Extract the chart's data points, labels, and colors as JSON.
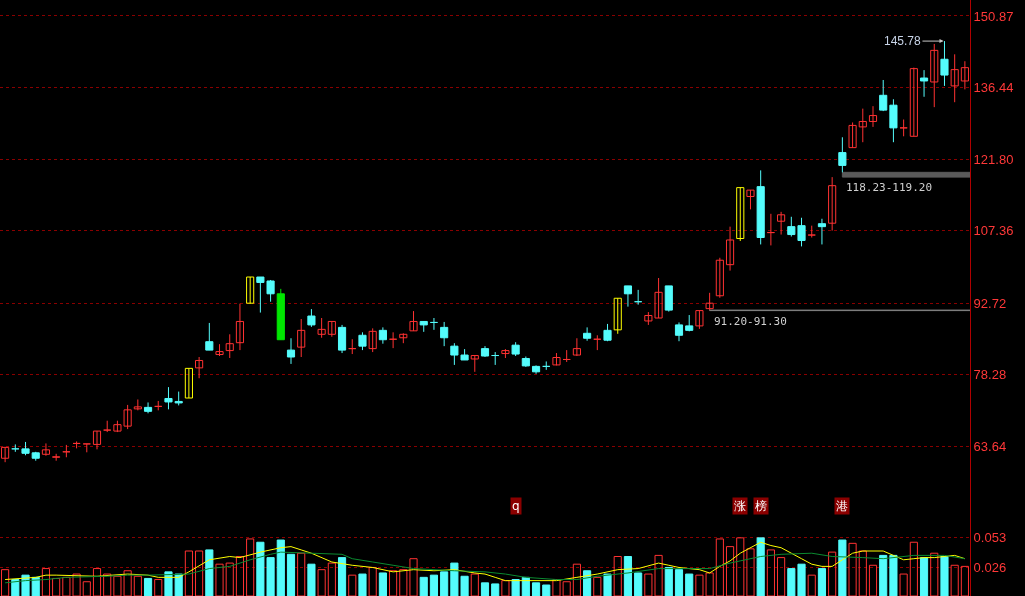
{
  "chart_data": [
    {
      "type": "candlestick",
      "categories": [
        null,
        null,
        null,
        null,
        null,
        null,
        null,
        null,
        null,
        null,
        null,
        null,
        null,
        null,
        null,
        null,
        null,
        null,
        null,
        null,
        null,
        null,
        null,
        null,
        null,
        null,
        null,
        null,
        null,
        null,
        null,
        null,
        null,
        null,
        null,
        null,
        null,
        null,
        null,
        null,
        null,
        null,
        null,
        null,
        null,
        null,
        null,
        null,
        null,
        null,
        null,
        null,
        null,
        null,
        null,
        null,
        null,
        null,
        null,
        null,
        null,
        null,
        null,
        null,
        null,
        null,
        null,
        null,
        null,
        null,
        null,
        null,
        null,
        null,
        null,
        null,
        null,
        null,
        null,
        null,
        null,
        null,
        null,
        null,
        null,
        null,
        null,
        null,
        null,
        null,
        null,
        null,
        null,
        null,
        null
      ],
      "ohlc": [
        [
          61.3,
          63.5,
          60.5,
          63.5
        ],
        [
          63.2,
          64.1,
          62.6,
          63.2
        ],
        [
          63.2,
          64.6,
          61.9,
          62.3
        ],
        [
          62.4,
          62.6,
          60.8,
          61.3
        ],
        [
          62.1,
          64.3,
          61.8,
          63.0
        ],
        [
          61.5,
          62.2,
          60.8,
          61.6
        ],
        [
          62.6,
          64.0,
          61.5,
          62.6
        ],
        [
          64.3,
          64.7,
          63.3,
          64.3
        ],
        [
          64.2,
          64.2,
          62.5,
          64.2
        ],
        [
          64.1,
          66.8,
          63.1,
          66.8
        ],
        [
          67.0,
          68.9,
          66.6,
          67.0
        ],
        [
          66.8,
          68.9,
          66.6,
          68.1
        ],
        [
          67.8,
          72.1,
          67.2,
          71.1
        ],
        [
          71.3,
          73.2,
          71.0,
          71.7
        ],
        [
          71.6,
          72.6,
          70.4,
          70.8
        ],
        [
          71.8,
          72.9,
          71.0,
          71.8
        ],
        [
          73.4,
          75.7,
          71.2,
          72.7
        ],
        [
          72.8,
          74.8,
          72.0,
          72.5
        ],
        [
          73.5,
          79.5,
          73.5,
          79.5
        ],
        [
          79.6,
          81.8,
          77.5,
          81.1
        ],
        [
          84.9,
          88.7,
          83.2,
          83.2
        ],
        [
          82.3,
          84.4,
          82.0,
          82.9
        ],
        [
          83.1,
          86.4,
          81.6,
          84.5
        ],
        [
          84.7,
          92.6,
          83.2,
          89.0
        ],
        [
          92.7,
          98.0,
          92.6,
          98.0
        ],
        [
          98.0,
          98.0,
          90.8,
          96.9
        ],
        [
          97.2,
          97.4,
          93.0,
          94.6
        ],
        [
          94.6,
          95.6,
          85.3,
          85.3
        ],
        [
          83.2,
          85.6,
          80.4,
          81.8
        ],
        [
          83.8,
          89.5,
          81.8,
          87.2
        ],
        [
          90.1,
          91.5,
          87.9,
          88.3
        ],
        [
          86.4,
          89.7,
          85.7,
          87.4
        ],
        [
          86.4,
          89.0,
          85.9,
          89.0
        ],
        [
          87.8,
          88.3,
          82.6,
          83.2
        ],
        [
          83.5,
          85.4,
          82.4,
          83.5
        ],
        [
          86.2,
          86.8,
          83.2,
          84.0
        ],
        [
          83.5,
          87.6,
          82.8,
          87.0
        ],
        [
          87.2,
          87.8,
          84.5,
          85.3
        ],
        [
          85.4,
          86.8,
          83.6,
          85.4
        ],
        [
          85.7,
          86.6,
          84.6,
          86.4
        ],
        [
          87.1,
          91.1,
          87.1,
          89.0
        ],
        [
          89.0,
          89.0,
          86.9,
          88.3
        ],
        [
          88.8,
          89.7,
          87.3,
          88.8
        ],
        [
          87.8,
          88.9,
          84.0,
          85.7
        ],
        [
          84.0,
          84.6,
          80.2,
          82.2
        ],
        [
          82.2,
          83.4,
          81.2,
          81.2
        ],
        [
          81.4,
          82.1,
          78.8,
          82.1
        ],
        [
          83.5,
          84.0,
          81.8,
          82.0
        ],
        [
          82.1,
          82.8,
          80.2,
          82.1
        ],
        [
          82.5,
          83.4,
          81.6,
          83.1
        ],
        [
          84.2,
          84.8,
          82.0,
          82.4
        ],
        [
          81.5,
          81.9,
          79.8,
          80.0
        ],
        [
          79.9,
          80.1,
          78.4,
          78.8
        ],
        [
          79.9,
          80.9,
          79.2,
          79.9
        ],
        [
          80.2,
          82.6,
          80.1,
          81.7
        ],
        [
          81.3,
          83.2,
          80.8,
          81.3
        ],
        [
          82.2,
          85.6,
          82.0,
          83.5
        ],
        [
          86.6,
          87.8,
          85.1,
          85.6
        ],
        [
          85.4,
          86.2,
          83.2,
          85.4
        ],
        [
          87.2,
          88.5,
          85.0,
          85.2
        ],
        [
          87.3,
          93.7,
          86.5,
          93.7
        ],
        [
          96.2,
          96.2,
          92.0,
          94.6
        ],
        [
          93.0,
          95.4,
          92.4,
          93.0
        ],
        [
          89.1,
          90.9,
          88.3,
          90.2
        ],
        [
          89.7,
          97.8,
          89.7,
          94.9
        ],
        [
          96.2,
          96.2,
          91.0,
          91.3
        ],
        [
          88.3,
          88.8,
          85.0,
          86.2
        ],
        [
          88.1,
          90.3,
          87.0,
          87.2
        ],
        [
          88.1,
          91.2,
          87.5,
          91.2
        ],
        [
          91.6,
          94.8,
          91.3,
          92.7
        ],
        [
          94.2,
          101.9,
          93.8,
          101.4
        ],
        [
          100.5,
          108.2,
          99.3,
          105.5
        ],
        [
          105.8,
          116.1,
          105.3,
          116.1
        ],
        [
          114.3,
          115.6,
          111.7,
          115.6
        ],
        [
          116.3,
          119.6,
          104.6,
          106.0
        ],
        [
          107.0,
          110.8,
          104.4,
          107.0
        ],
        [
          109.3,
          111.2,
          106.6,
          110.6
        ],
        [
          108.2,
          110.2,
          106.2,
          106.6
        ],
        [
          108.4,
          110.0,
          104.2,
          105.4
        ],
        [
          106.5,
          108.4,
          106.0,
          106.5
        ],
        [
          108.8,
          109.8,
          104.6,
          108.2
        ],
        [
          108.9,
          118.23,
          107.4,
          116.5
        ],
        [
          123.2,
          126.3,
          119.2,
          120.6
        ],
        [
          124.2,
          129.3,
          124.2,
          128.7
        ],
        [
          128.4,
          132.1,
          125.3,
          129.5
        ],
        [
          129.5,
          132.6,
          128.4,
          130.7
        ],
        [
          134.8,
          137.9,
          131.6,
          131.8
        ],
        [
          132.8,
          134.0,
          125.3,
          128.2
        ],
        [
          128.2,
          129.9,
          126.5,
          128.2
        ],
        [
          126.5,
          140.4,
          126.5,
          140.2
        ],
        [
          138.3,
          139.9,
          134.5,
          137.7
        ],
        [
          137.5,
          145.2,
          132.4,
          143.9
        ],
        [
          142.1,
          145.78,
          136.7,
          138.9
        ],
        [
          136.7,
          143.1,
          133.4,
          140.0
        ],
        [
          137.7,
          141.7,
          136.0,
          140.4
        ]
      ],
      "colors": [
        "#ff3232",
        "#54fcfc",
        "#54fcfc",
        "#54fcfc",
        "#ff3232",
        "#ff3232",
        "#ff3232",
        "#ff3232",
        "#ff3232",
        "#ff3232",
        "#ff3232",
        "#ff3232",
        "#ff3232",
        "#ff3232",
        "#54fcfc",
        "#ff3232",
        "#54fcfc",
        "#54fcfc",
        "#ffff00",
        "#ff3232",
        "#54fcfc",
        "#ff3232",
        "#ff3232",
        "#ff3232",
        "#ffff00",
        "#54fcfc",
        "#54fcfc",
        "#00e600",
        "#54fcfc",
        "#ff3232",
        "#54fcfc",
        "#ff3232",
        "#ff3232",
        "#54fcfc",
        "#ff3232",
        "#54fcfc",
        "#ff3232",
        "#54fcfc",
        "#ff3232",
        "#ff3232",
        "#ff3232",
        "#54fcfc",
        "#54fcfc",
        "#54fcfc",
        "#54fcfc",
        "#54fcfc",
        "#ff3232",
        "#54fcfc",
        "#54fcfc",
        "#ff3232",
        "#54fcfc",
        "#54fcfc",
        "#54fcfc",
        "#54fcfc",
        "#ff3232",
        "#ff3232",
        "#ff3232",
        "#54fcfc",
        "#ff3232",
        "#54fcfc",
        "#ffff00",
        "#54fcfc",
        "#54fcfc",
        "#ff3232",
        "#ff3232",
        "#54fcfc",
        "#54fcfc",
        "#54fcfc",
        "#ff3232",
        "#ff3232",
        "#ff3232",
        "#ff3232",
        "#ffff00",
        "#ff3232",
        "#54fcfc",
        "#ff3232",
        "#ff3232",
        "#54fcfc",
        "#54fcfc",
        "#ff3232",
        "#54fcfc",
        "#ff3232",
        "#54fcfc",
        "#ff3232",
        "#ff3232",
        "#ff3232",
        "#54fcfc",
        "#54fcfc",
        "#ff3232",
        "#ff3232",
        "#54fcfc",
        "#ff3232",
        "#54fcfc",
        "#ff3232",
        "#ff3232"
      ],
      "ylim": [
        49.4,
        154.1
      ],
      "yticks": [
        63.64,
        78.28,
        92.72,
        107.36,
        {
          "value": 121.8,
          "label": "121.80"
        },
        136.44,
        150.87
      ],
      "grid": "y",
      "bands": [
        {
          "axis": "y",
          "from": 91.2,
          "to": 91.3,
          "label": "91.20-91.30",
          "color": "#808080"
        },
        {
          "axis": "y",
          "from": 118.23,
          "to": 119.2,
          "label": "118.23-119.20",
          "color": "#5a5a5a"
        }
      ],
      "annotations": [
        "145.78",
        "q",
        "涨",
        "榜",
        "港"
      ]
    },
    {
      "type": "bar",
      "categories": [
        null,
        null,
        null,
        null,
        null,
        null,
        null,
        null,
        null,
        null,
        null,
        null,
        null,
        null,
        null,
        null,
        null,
        null,
        null,
        null,
        null,
        null,
        null,
        null,
        null,
        null,
        null,
        null,
        null,
        null,
        null,
        null,
        null,
        null,
        null,
        null,
        null,
        null,
        null,
        null,
        null,
        null,
        null,
        null,
        null,
        null,
        null,
        null,
        null,
        null,
        null,
        null,
        null,
        null,
        null,
        null,
        null,
        null,
        null,
        null,
        null,
        null,
        null,
        null,
        null,
        null,
        null,
        null,
        null,
        null,
        null,
        null,
        null,
        null,
        null,
        null,
        null,
        null,
        null,
        null,
        null,
        null,
        null,
        null,
        null,
        null,
        null,
        null,
        null,
        null,
        null,
        null,
        null,
        null,
        null
      ],
      "series": [
        {
          "color": "#ff3232",
          "values": [
            0.024,
            null,
            null,
            null,
            0.025,
            0.016,
            0.017,
            0.02,
            0.013,
            0.025,
            0.02,
            0.018,
            0.023,
            0.018,
            null,
            0.015,
            null,
            null,
            0.041,
            0.041,
            null,
            0.029,
            0.03,
            0.036,
            0.052,
            null,
            null,
            null,
            null,
            0.039,
            null,
            0.024,
            0.03,
            null,
            0.019,
            null,
            0.026,
            null,
            0.023,
            0.024,
            0.034,
            null,
            null,
            null,
            null,
            null,
            0.02,
            null,
            null,
            0.014,
            null,
            null,
            null,
            null,
            0.015,
            0.013,
            0.029,
            null,
            0.017,
            null,
            0.036,
            null,
            null,
            0.02,
            0.037,
            null,
            null,
            null,
            0.019,
            0.021,
            0.052,
            0.045,
            0.053,
            0.043,
            null,
            0.042,
            0.035,
            null,
            null,
            0.019,
            null,
            0.04,
            null,
            0.048,
            0.041,
            0.028,
            null,
            null,
            0.02,
            0.049,
            null,
            0.039,
            null,
            0.028,
            0.027
          ]
        },
        {
          "color": "#54fcfc",
          "values": [
            null,
            0.015,
            0.019,
            0.017,
            null,
            null,
            null,
            null,
            null,
            null,
            null,
            null,
            null,
            null,
            0.016,
            null,
            0.022,
            0.02,
            null,
            null,
            0.042,
            null,
            null,
            null,
            null,
            0.049,
            0.035,
            0.051,
            0.038,
            null,
            0.029,
            null,
            null,
            0.035,
            null,
            0.02,
            null,
            0.021,
            null,
            null,
            null,
            0.017,
            0.019,
            0.022,
            0.03,
            0.018,
            null,
            0.012,
            0.011,
            null,
            0.015,
            0.017,
            0.012,
            0.01,
            null,
            null,
            null,
            0.023,
            null,
            0.02,
            null,
            0.036,
            0.021,
            null,
            null,
            0.026,
            0.024,
            0.02,
            null,
            null,
            null,
            null,
            null,
            null,
            0.053,
            null,
            null,
            0.025,
            0.029,
            null,
            0.025,
            null,
            0.051,
            null,
            null,
            null,
            0.037,
            0.037,
            null,
            null,
            0.035,
            null,
            0.036,
            null,
            null
          ]
        },
        {
          "type": "line",
          "color": "#ffff00",
          "values": [
            0.015,
            null,
            null,
            0.017,
            0.019,
            0.019,
            null,
            null,
            null,
            0.018,
            null,
            null,
            0.02,
            null,
            0.019,
            0.017,
            null,
            0.017,
            0.022,
            null,
            0.033,
            null,
            0.036,
            0.035,
            null,
            0.04,
            null,
            0.044,
            0.045,
            0.042,
            0.039,
            null,
            0.031,
            null,
            0.028,
            null,
            0.026,
            null,
            0.022,
            null,
            0.024,
            null,
            0.023,
            null,
            0.024,
            null,
            0.021,
            0.02,
            0.017,
            0.014,
            null,
            0.014,
            null,
            null,
            0.014,
            null,
            0.017,
            null,
            0.02,
            null,
            0.024,
            null,
            0.025,
            null,
            0.03,
            0.028,
            0.026,
            null,
            0.024,
            0.021,
            0.027,
            0.032,
            0.039,
            null,
            0.049,
            0.046,
            0.044,
            0.039,
            0.034,
            0.029,
            0.027,
            0.027,
            0.033,
            0.039,
            0.041,
            null,
            0.041,
            0.037,
            0.033,
            0.034,
            0.035,
            0.035,
            0.036,
            0.037,
            0.034
          ]
        },
        {
          "type": "line",
          "color": "#0b8a30",
          "values": [
            0.012,
            null,
            0.014,
            null,
            0.015,
            null,
            0.017,
            null,
            null,
            null,
            0.018,
            null,
            0.019,
            null,
            0.019,
            null,
            null,
            null,
            0.02,
            null,
            0.025,
            null,
            0.027,
            null,
            0.033,
            null,
            0.038,
            0.04,
            null,
            null,
            0.039,
            null,
            null,
            0.038,
            0.034,
            null,
            0.031,
            null,
            0.028,
            null,
            0.025,
            null,
            0.024,
            null,
            0.023,
            null,
            null,
            0.022,
            null,
            0.02,
            null,
            0.017,
            null,
            null,
            0.015,
            null,
            0.015,
            null,
            0.018,
            null,
            null,
            0.021,
            null,
            null,
            0.025,
            null,
            null,
            null,
            null,
            0.025,
            null,
            0.03,
            0.032,
            null,
            0.036,
            null,
            0.038,
            null,
            null,
            0.039,
            null,
            0.036,
            null,
            null,
            0.035,
            null,
            0.034,
            null,
            null,
            0.037,
            null,
            null,
            0.037,
            null,
            0.034
          ]
        }
      ],
      "ylim": [
        0,
        0.072
      ],
      "yticks": [
        0.026,
        0.053
      ],
      "grid": "y"
    }
  ]
}
